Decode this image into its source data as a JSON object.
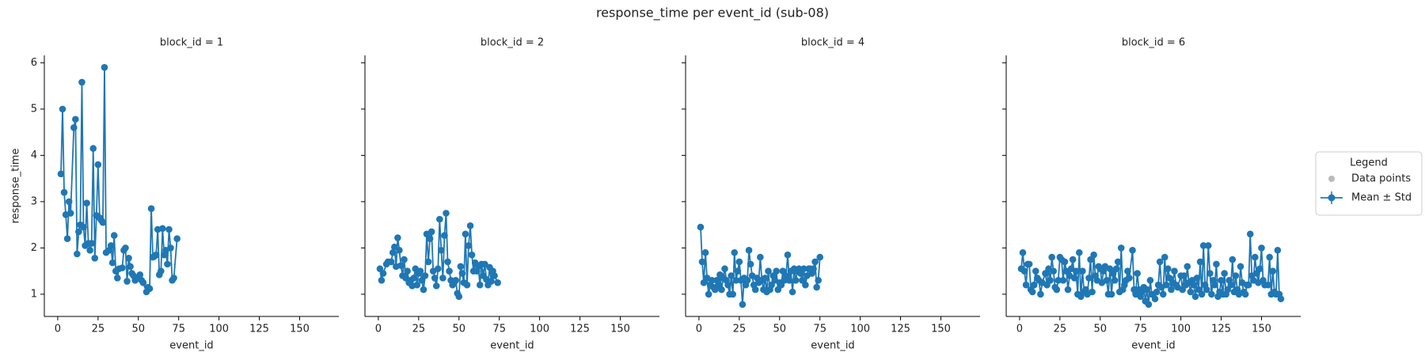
{
  "title": "response_time per event_id (sub-08)",
  "legend": {
    "title": "Legend",
    "items": [
      {
        "name": "Data points",
        "color": "#bbbbbb"
      },
      {
        "name": "Mean ± Std",
        "color": "#1f77b4"
      }
    ]
  },
  "chart_data": [
    {
      "type": "line",
      "title": "block_id = 1",
      "x_label": "event_id",
      "y_label": "response_time",
      "xlim": [
        -8.3,
        174.3
      ],
      "xticks": [
        0,
        25,
        50,
        75,
        100,
        125,
        150
      ],
      "ylim": [
        0.52,
        6.16
      ],
      "yticks": [
        1,
        2,
        3,
        4,
        5,
        6
      ],
      "x": [
        2,
        3,
        4,
        5,
        6,
        7,
        8,
        10,
        11,
        12,
        13,
        14,
        15,
        16,
        17,
        18,
        19,
        20,
        21,
        22,
        23,
        24,
        25,
        26,
        27,
        28,
        29,
        30,
        32,
        33,
        34,
        35,
        36,
        37,
        38,
        40,
        41,
        42,
        43,
        44,
        45,
        46,
        47,
        48,
        50,
        51,
        52,
        53,
        55,
        56,
        57,
        58,
        59,
        60,
        61,
        62,
        63,
        64,
        65,
        66,
        67,
        68,
        69,
        70,
        71,
        72,
        74
      ],
      "series": [
        {
          "name": "Mean ± Std",
          "color": "#1f77b4",
          "values": [
            3.6,
            5.0,
            3.2,
            2.72,
            2.2,
            3.0,
            2.75,
            4.6,
            4.78,
            1.87,
            2.35,
            2.5,
            5.58,
            2.45,
            2.05,
            2.97,
            2.1,
            1.95,
            2.1,
            4.15,
            1.78,
            2.7,
            3.8,
            2.65,
            2.6,
            2.55,
            5.9,
            1.9,
            1.95,
            2.05,
            1.68,
            2.27,
            1.5,
            1.35,
            1.55,
            1.57,
            1.95,
            2.0,
            1.28,
            1.78,
            1.6,
            1.45,
            1.4,
            1.3,
            1.35,
            1.42,
            1.3,
            1.25,
            1.05,
            1.15,
            1.12,
            2.85,
            1.8,
            1.82,
            1.85,
            2.4,
            1.42,
            1.5,
            2.42,
            1.85,
            1.95,
            1.65,
            2.4,
            2.0,
            1.3,
            1.35,
            2.2
          ]
        }
      ]
    },
    {
      "type": "line",
      "title": "block_id = 2",
      "x_label": "event_id",
      "xlim": [
        -8.3,
        174.3
      ],
      "xticks": [
        0,
        25,
        50,
        75,
        100,
        125,
        150
      ],
      "ylim": [
        0.52,
        6.16
      ],
      "yticks": [
        1,
        2,
        3,
        4,
        5,
        6
      ],
      "x": [
        1,
        2,
        3,
        5,
        6,
        8,
        9,
        10,
        11,
        12,
        13,
        14,
        15,
        16,
        17,
        18,
        19,
        20,
        21,
        22,
        23,
        24,
        25,
        26,
        27,
        28,
        29,
        30,
        31,
        32,
        33,
        34,
        35,
        36,
        37,
        38,
        39,
        40,
        41,
        42,
        43,
        44,
        45,
        46,
        47,
        48,
        49,
        50,
        51,
        52,
        53,
        54,
        55,
        56,
        57,
        58,
        59,
        60,
        61,
        62,
        63,
        64,
        65,
        66,
        67,
        68,
        69,
        70,
        71,
        72,
        74
      ],
      "series": [
        {
          "name": "Mean ± Std",
          "color": "#1f77b4",
          "values": [
            1.55,
            1.3,
            1.45,
            1.65,
            1.7,
            1.7,
            1.9,
            2.02,
            1.6,
            2.22,
            1.95,
            1.62,
            1.4,
            1.75,
            1.35,
            1.5,
            1.25,
            1.3,
            1.18,
            1.35,
            1.55,
            1.2,
            1.45,
            1.5,
            1.3,
            1.1,
            1.4,
            2.3,
            1.7,
            2.2,
            2.35,
            1.5,
            1.35,
            1.18,
            1.55,
            2.62,
            1.95,
            1.35,
            2.27,
            2.75,
            1.7,
            1.5,
            1.3,
            1.2,
            1.25,
            1.3,
            1.02,
            0.95,
            1.6,
            1.45,
            1.25,
            2.3,
            1.2,
            2.05,
            2.48,
            1.85,
            1.5,
            1.68,
            1.5,
            1.6,
            1.2,
            1.65,
            1.4,
            1.65,
            1.32,
            1.2,
            1.58,
            1.28,
            1.5,
            1.4,
            1.25
          ]
        }
      ]
    },
    {
      "type": "line",
      "title": "block_id = 4",
      "x_label": "event_id",
      "xlim": [
        -8.3,
        174.3
      ],
      "xticks": [
        0,
        25,
        50,
        75,
        100,
        125,
        150
      ],
      "ylim": [
        0.52,
        6.16
      ],
      "yticks": [
        1,
        2,
        3,
        4,
        5,
        6
      ],
      "x": [
        1,
        2,
        3,
        4,
        5,
        6,
        7,
        8,
        9,
        10,
        11,
        12,
        13,
        14,
        15,
        16,
        17,
        18,
        19,
        20,
        21,
        22,
        23,
        24,
        25,
        26,
        27,
        28,
        29,
        30,
        31,
        32,
        33,
        34,
        35,
        36,
        37,
        38,
        39,
        40,
        41,
        42,
        43,
        44,
        45,
        46,
        47,
        48,
        49,
        50,
        51,
        52,
        53,
        54,
        55,
        56,
        57,
        58,
        59,
        60,
        61,
        62,
        63,
        64,
        65,
        66,
        67,
        68,
        69,
        70,
        71,
        72,
        73,
        74,
        75
      ],
      "series": [
        {
          "name": "Mean ± Std",
          "color": "#1f77b4",
          "values": [
            2.45,
            1.7,
            1.25,
            1.9,
            1.35,
            1.0,
            1.2,
            1.3,
            1.15,
            1.1,
            1.3,
            1.2,
            1.42,
            1.1,
            1.35,
            1.55,
            1.3,
            1.2,
            1.0,
            1.4,
            1.0,
            1.9,
            1.3,
            1.5,
            1.7,
            1.3,
            0.78,
            1.35,
            1.2,
            1.3,
            1.95,
            1.65,
            1.4,
            1.2,
            1.1,
            1.35,
            1.25,
            1.8,
            1.3,
            1.1,
            1.35,
            1.05,
            1.5,
            1.1,
            1.2,
            1.4,
            1.3,
            1.5,
            1.1,
            1.25,
            1.2,
            1.5,
            1.3,
            1.4,
            1.85,
            1.3,
            1.5,
            1.05,
            1.55,
            1.3,
            1.5,
            1.55,
            1.45,
            1.3,
            1.55,
            1.2,
            1.4,
            1.55,
            1.55,
            1.45,
            1.55,
            1.7,
            1.15,
            1.3,
            1.8
          ]
        }
      ]
    },
    {
      "type": "line",
      "title": "block_id = 6",
      "x_label": "event_id",
      "xlim": [
        -8.3,
        174.3
      ],
      "xticks": [
        0,
        25,
        50,
        75,
        100,
        125,
        150
      ],
      "ylim": [
        0.52,
        6.16
      ],
      "yticks": [
        1,
        2,
        3,
        4,
        5,
        6
      ],
      "x": [
        1,
        2,
        3,
        4,
        5,
        6,
        7,
        8,
        9,
        10,
        11,
        12,
        13,
        14,
        16,
        17,
        18,
        19,
        20,
        21,
        22,
        23,
        24,
        25,
        26,
        27,
        28,
        29,
        30,
        31,
        32,
        33,
        34,
        35,
        36,
        37,
        38,
        39,
        40,
        41,
        42,
        43,
        44,
        45,
        46,
        47,
        48,
        49,
        50,
        51,
        52,
        53,
        54,
        55,
        56,
        57,
        58,
        59,
        60,
        61,
        62,
        63,
        64,
        65,
        66,
        67,
        68,
        70,
        71,
        72,
        73,
        74,
        75,
        76,
        77,
        78,
        79,
        80,
        81,
        82,
        84,
        85,
        86,
        87,
        88,
        89,
        90,
        91,
        92,
        93,
        94,
        95,
        96,
        97,
        98,
        100,
        101,
        102,
        103,
        104,
        105,
        106,
        107,
        108,
        109,
        110,
        111,
        112,
        113,
        114,
        115,
        116,
        117,
        118,
        119,
        120,
        121,
        122,
        123,
        124,
        125,
        126,
        127,
        128,
        129,
        130,
        131,
        132,
        133,
        134,
        135,
        136,
        137,
        138,
        139,
        140,
        141,
        142,
        143,
        144,
        145,
        146,
        147,
        148,
        149,
        150,
        151,
        152,
        154,
        155,
        156,
        157,
        158,
        159,
        160,
        161,
        162
      ],
      "series": [
        {
          "name": "Mean ± Std",
          "color": "#1f77b4",
          "values": [
            1.55,
            1.9,
            1.5,
            1.2,
            1.65,
            1.65,
            1.1,
            1.05,
            1.2,
            1.5,
            1.35,
            1.3,
            1.0,
            1.25,
            1.45,
            1.2,
            1.55,
            1.3,
            1.8,
            1.5,
            1.15,
            1.1,
            1.3,
            1.8,
            1.75,
            1.3,
            1.7,
            1.5,
            1.1,
            1.4,
            1.55,
            1.75,
            1.35,
            1.5,
            1.0,
            1.9,
            0.95,
            1.5,
            1.05,
            1.1,
            1.0,
            1.35,
            1.75,
            1.05,
            1.85,
            1.4,
            1.3,
            1.6,
            1.55,
            1.25,
            1.5,
            1.6,
            1.3,
            1.0,
            1.55,
            1.0,
            1.45,
            1.3,
            1.55,
            1.7,
            1.05,
            2.0,
            1.1,
            1.2,
            1.3,
            1.5,
            1.35,
            1.95,
            1.1,
            1.0,
            1.45,
            1.1,
            0.95,
            1.05,
            1.15,
            0.85,
            1.1,
            0.78,
            1.3,
            1.0,
            0.9,
            1.05,
            1.2,
            1.7,
            1.15,
            1.0,
            1.8,
            1.2,
            1.55,
            1.35,
            1.1,
            1.25,
            1.5,
            1.2,
            1.15,
            1.4,
            1.1,
            1.4,
            1.2,
            1.6,
            1.25,
            1.05,
            1.3,
            1.2,
            0.95,
            1.35,
            1.1,
            1.7,
            1.0,
            2.05,
            1.2,
            1.1,
            2.05,
            1.45,
            1.0,
            1.3,
            1.2,
            1.65,
            0.95,
            1.05,
            1.3,
            1.0,
            1.45,
            1.0,
            1.1,
            1.3,
            1.2,
            1.75,
            1.05,
            1.4,
            1.1,
            1.0,
            1.6,
            1.25,
            1.05,
            1.0,
            1.2,
            1.2,
            2.3,
            1.4,
            1.3,
            1.8,
            1.45,
            1.25,
            1.55,
            2.0,
            1.3,
            1.2,
            1.2,
            1.8,
            1.0,
            1.5,
            1.05,
            1.0,
            1.95,
            1.0,
            0.9
          ]
        }
      ]
    }
  ]
}
